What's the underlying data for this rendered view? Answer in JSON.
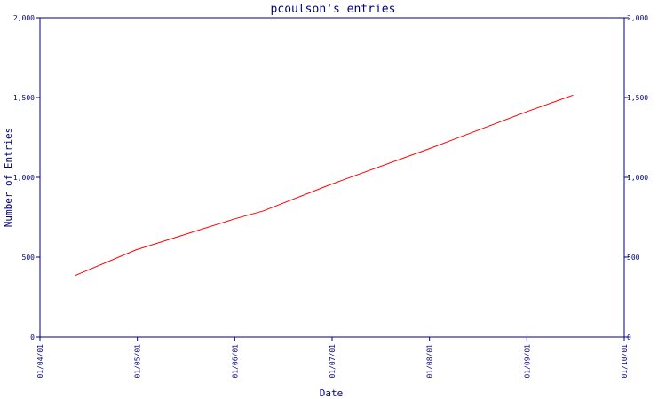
{
  "chart_data": {
    "type": "line",
    "title": "pcoulson's entries",
    "xlabel": "Date",
    "ylabel": "Number of Entries",
    "x_ticks": [
      "01/04/01",
      "01/05/01",
      "01/06/01",
      "01/07/01",
      "01/08/01",
      "01/09/01",
      "01/10/01"
    ],
    "y_ticks": [
      "0",
      "500",
      "1,000",
      "1,500",
      "2,000"
    ],
    "xlim": [
      "2001-04-01",
      "2001-10-01"
    ],
    "ylim": [
      0,
      2000
    ],
    "y_axis_both_sides": true,
    "grid": false,
    "series": [
      {
        "color": "#ff0000",
        "points": [
          {
            "x": "2001-04-12",
            "y": 385
          },
          {
            "x": "2001-05-01",
            "y": 545
          },
          {
            "x": "2001-06-01",
            "y": 740
          },
          {
            "x": "2001-06-10",
            "y": 790
          },
          {
            "x": "2001-07-01",
            "y": 955
          },
          {
            "x": "2001-08-01",
            "y": 1180
          },
          {
            "x": "2001-09-01",
            "y": 1415
          },
          {
            "x": "2001-09-15",
            "y": 1515
          }
        ]
      }
    ]
  },
  "colors": {
    "axis": "#000080",
    "line": "#ff0000",
    "background": "#ffffff"
  }
}
